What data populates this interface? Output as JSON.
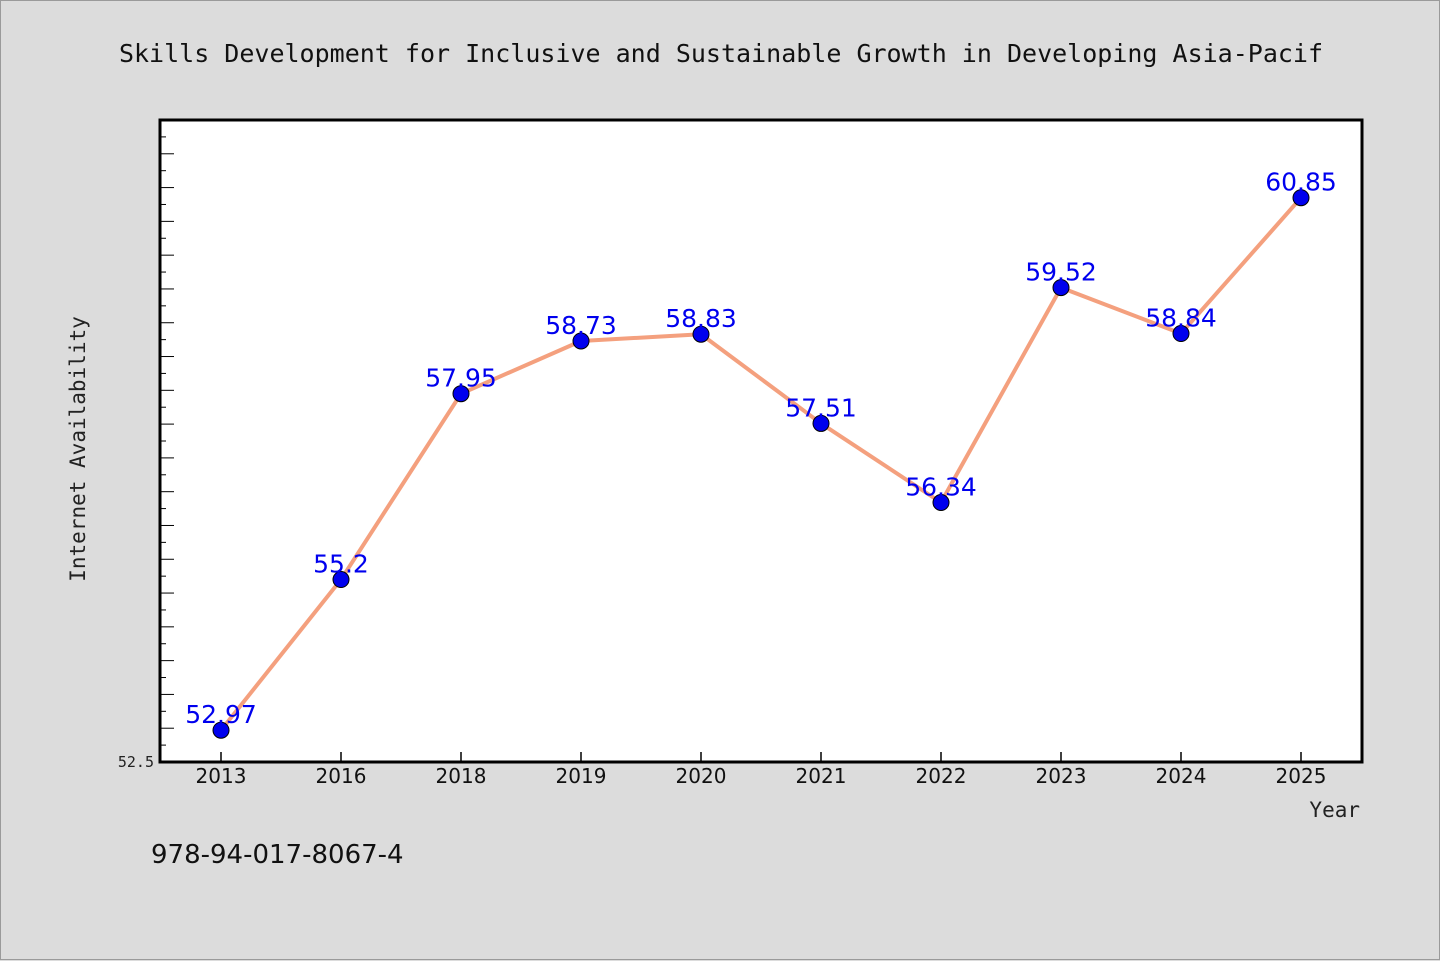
{
  "colors": {
    "background": "#dcdcdc",
    "plot_background": "#ffffff",
    "line": "#f4a07e",
    "marker": "#0000ee",
    "data_label": "#0000ee"
  },
  "footer_text": "978-94-017-8067-4",
  "chart_data": {
    "type": "line",
    "title": "Skills Development for Inclusive and Sustainable Growth in Developing Asia-Pacif",
    "xlabel": "Year",
    "ylabel": "Internet Availability",
    "categories": [
      "2013",
      "2016",
      "2018",
      "2019",
      "2020",
      "2021",
      "2022",
      "2023",
      "2024",
      "2025"
    ],
    "series": [
      {
        "values": [
          52.97,
          55.2,
          57.95,
          58.73,
          58.83,
          57.51,
          56.34,
          59.52,
          58.84,
          60.85
        ],
        "data_labels": [
          "52.97",
          "55.2",
          "57.95",
          "58.73",
          "58.83",
          "57.51",
          "56.34",
          "59.52",
          "58.84",
          "60.85"
        ]
      }
    ],
    "y_tick_label": "52.5",
    "ylim": [
      52.5,
      62.0
    ],
    "grid": false,
    "legend": "none"
  }
}
